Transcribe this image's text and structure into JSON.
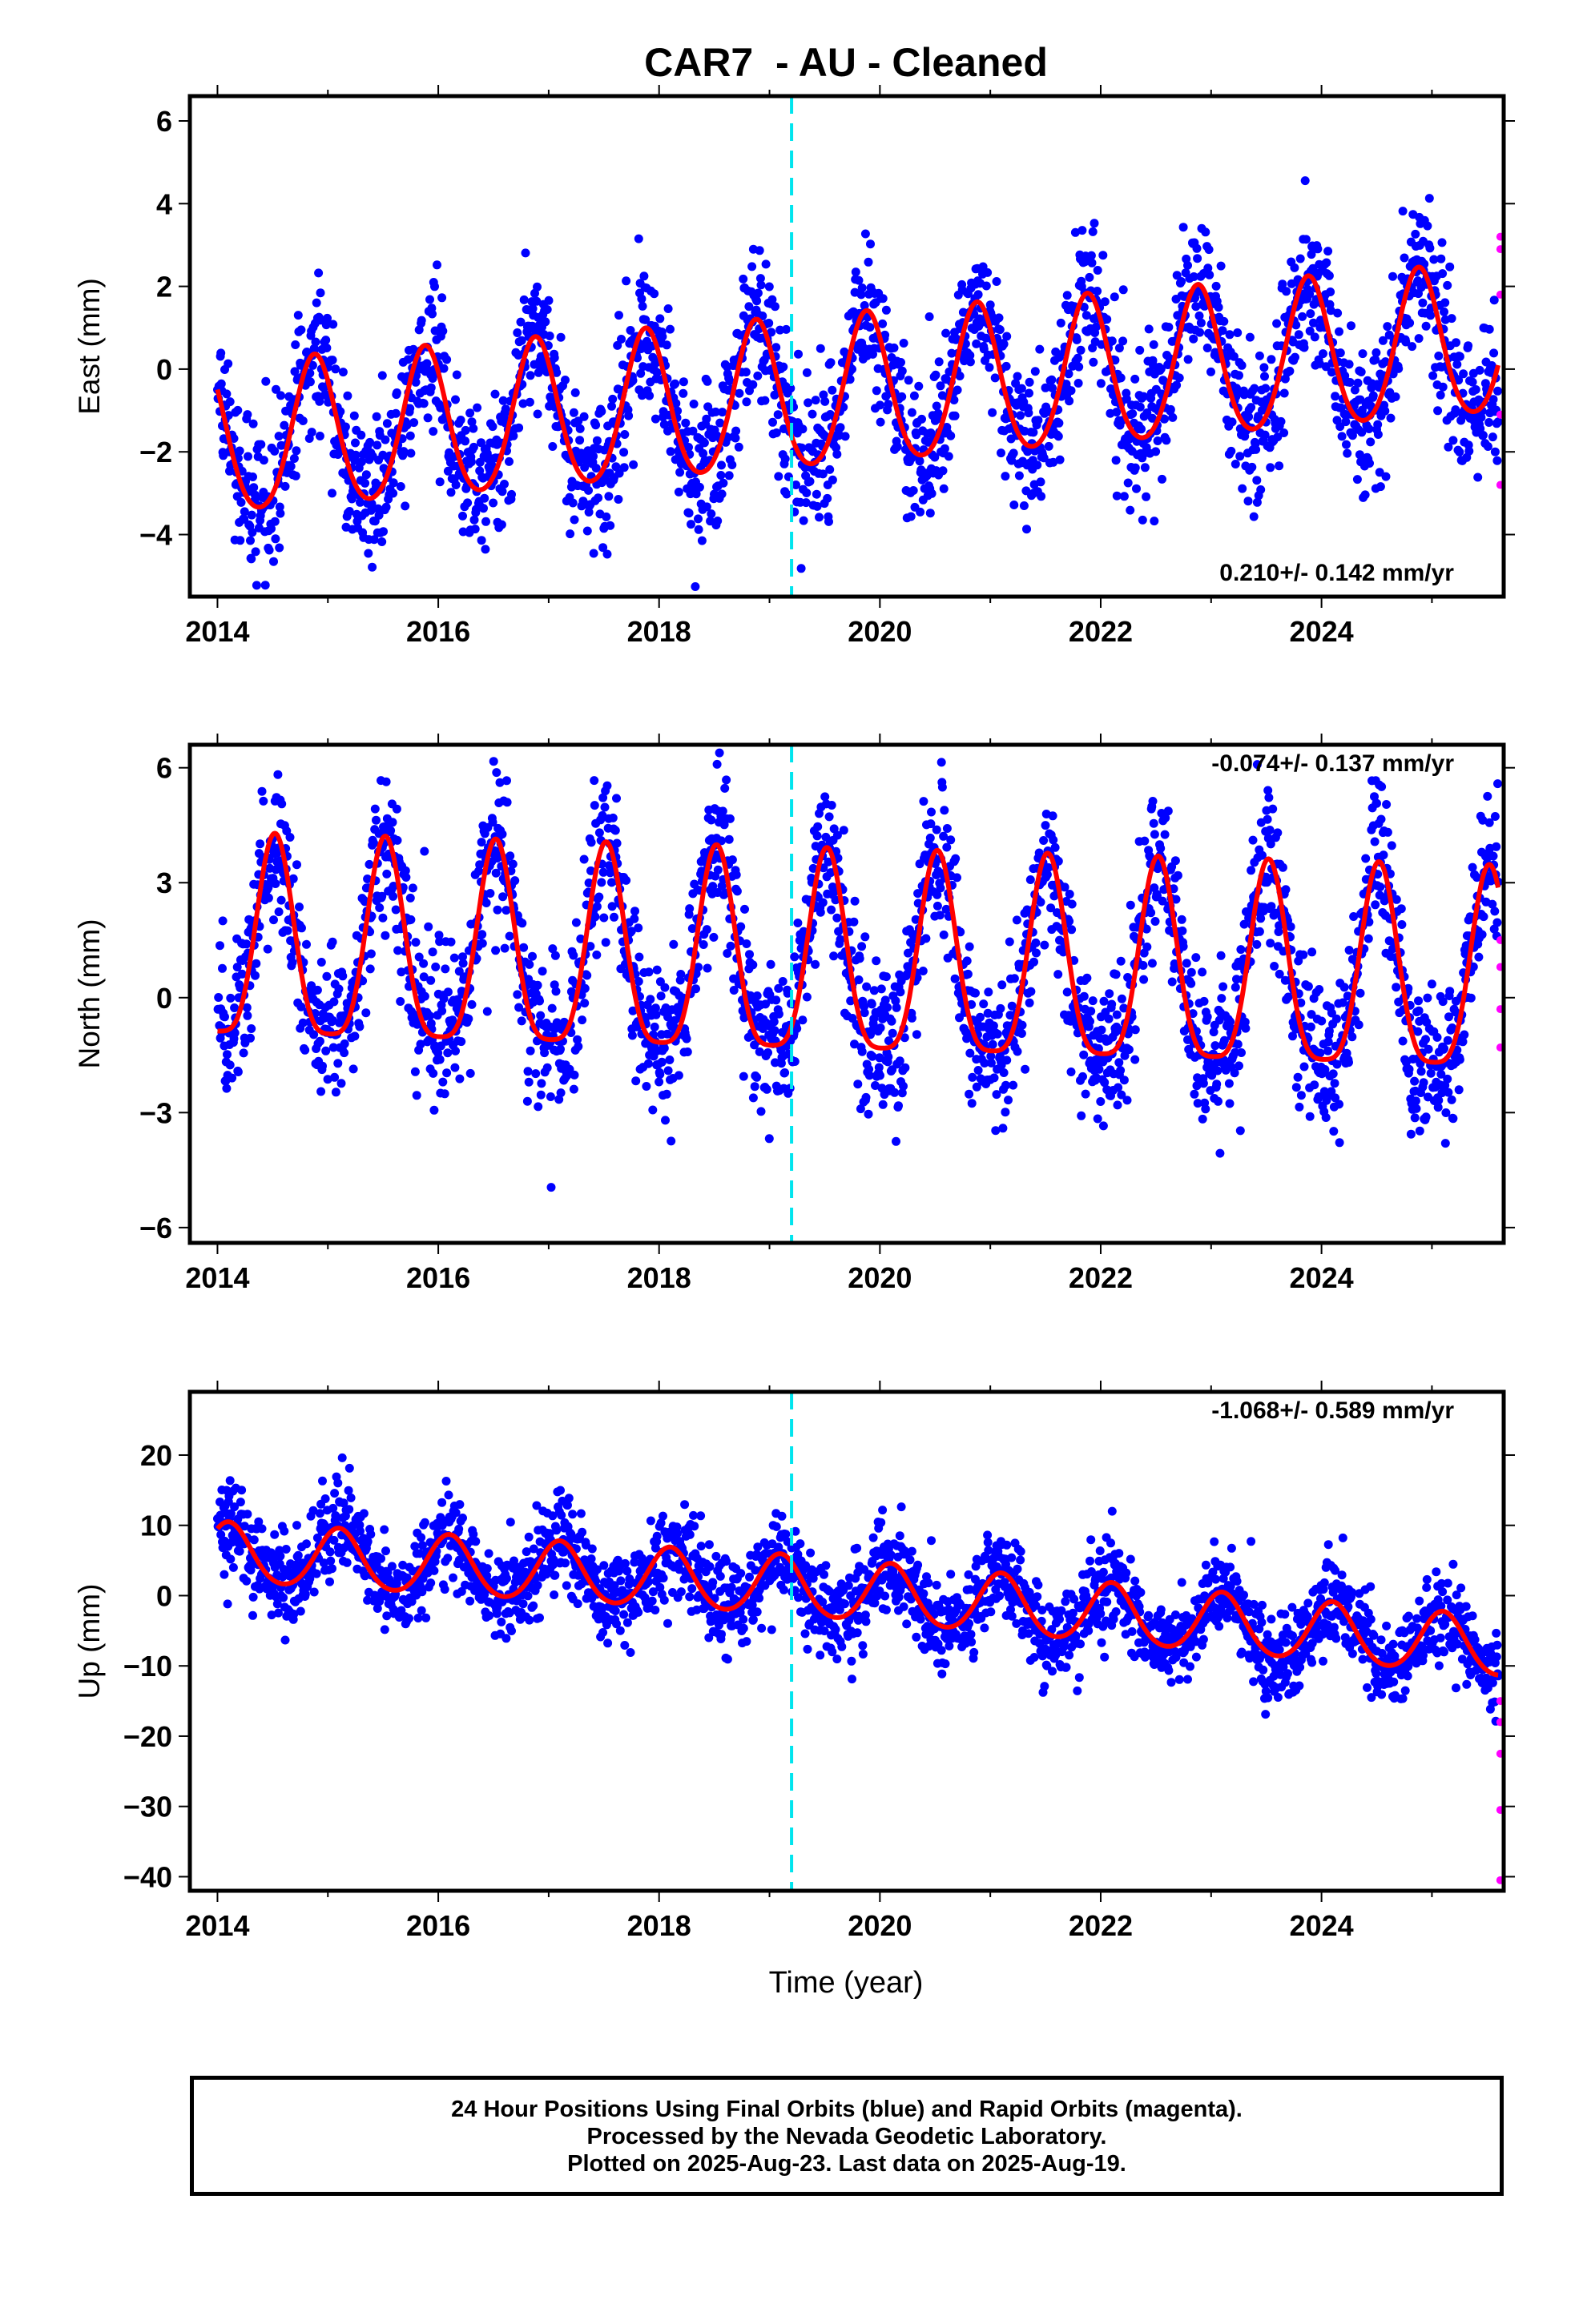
{
  "title": "CAR7  - AU - Cleaned",
  "xlabel": "Time (year)",
  "footer": {
    "line1": "24 Hour Positions Using Final Orbits (blue) and Rapid Orbits (magenta).",
    "line2": "Processed by the Nevada Geodetic Laboratory.",
    "line3": "Plotted on 2025-Aug-23. Last data on 2025-Aug-19."
  },
  "colors": {
    "final": "#0000ff",
    "rapid": "#ff00ff",
    "model": "#ff0000",
    "marker": "#00e5ee"
  },
  "chart_data": [
    {
      "type": "scatter",
      "ylabel": "East (mm)",
      "xlim": [
        2013.75,
        2025.65
      ],
      "ylim": [
        -5.5,
        6.6
      ],
      "yticks": [
        -4,
        -2,
        0,
        2,
        4,
        6
      ],
      "xticks": [
        2014,
        2016,
        2018,
        2020,
        2022,
        2024
      ],
      "rate": "0.210+/- 0.142 mm/yr",
      "rate_position": "bottom-right",
      "marker_line_x": 2019.2,
      "model": {
        "offset": -0.6,
        "rate": 0.21,
        "amp": 1.8,
        "peak": 0.88,
        "amp2": 0.2
      },
      "scatter_sd": 0.9,
      "rapid_points": [
        [
          2025.62,
          3.2
        ],
        [
          2025.62,
          2.9
        ],
        [
          2025.62,
          1.8
        ],
        [
          2025.62,
          -1.1
        ],
        [
          2025.62,
          -2.8
        ]
      ],
      "series": [
        {
          "name": "Final Orbits (blue)",
          "color": "#0000ff"
        },
        {
          "name": "Rapid Orbits (magenta)",
          "color": "#ff00ff"
        },
        {
          "name": "model",
          "color": "#ff0000"
        }
      ]
    },
    {
      "type": "scatter",
      "ylabel": "North (mm)",
      "xlim": [
        2013.75,
        2025.65
      ],
      "ylim": [
        -6.4,
        6.6
      ],
      "yticks": [
        -6,
        -3,
        0,
        3,
        6
      ],
      "xticks": [
        2014,
        2016,
        2018,
        2020,
        2022,
        2024
      ],
      "rate": "-0.074+/- 0.137 mm/yr",
      "rate_position": "top-right",
      "marker_line_x": 2019.2,
      "model": {
        "offset": 0.7,
        "rate": -0.074,
        "amp": 2.6,
        "peak": 0.52,
        "amp2": 0.6
      },
      "scatter_sd": 1.0,
      "rapid_points": [
        [
          2025.62,
          1.5
        ],
        [
          2025.62,
          0.8
        ],
        [
          2025.62,
          -0.3
        ],
        [
          2025.62,
          -1.3
        ]
      ],
      "series": [
        {
          "name": "Final Orbits (blue)",
          "color": "#0000ff"
        },
        {
          "name": "Rapid Orbits (magenta)",
          "color": "#ff00ff"
        },
        {
          "name": "model",
          "color": "#ff0000"
        }
      ]
    },
    {
      "type": "scatter",
      "ylabel": "Up (mm)",
      "xlim": [
        2013.75,
        2025.65
      ],
      "ylim": [
        -42,
        29
      ],
      "yticks": [
        -40,
        -30,
        -20,
        -10,
        0,
        10,
        20
      ],
      "xticks": [
        2014,
        2016,
        2018,
        2020,
        2022,
        2024
      ],
      "rate": "-1.068+/- 0.589 mm/yr",
      "rate_position": "top-right",
      "marker_line_x": 2019.2,
      "model": {
        "offset": 5.5,
        "rate": -1.068,
        "amp": 4.2,
        "peak": 0.1,
        "amp2": 0.4,
        "trend": [
          [
            2014.0,
            6.0
          ],
          [
            2019.0,
            1.5
          ],
          [
            2025.6,
            -7.5
          ]
        ]
      },
      "scatter_sd": 3.3,
      "rapid_points": [
        [
          2025.62,
          -15
        ],
        [
          2025.62,
          -18
        ],
        [
          2025.62,
          -22.5
        ],
        [
          2025.62,
          -30.5
        ],
        [
          2025.62,
          -40.5
        ]
      ],
      "series": [
        {
          "name": "Final Orbits (blue)",
          "color": "#0000ff"
        },
        {
          "name": "Rapid Orbits (magenta)",
          "color": "#ff00ff"
        },
        {
          "name": "model",
          "color": "#ff0000"
        }
      ]
    }
  ]
}
